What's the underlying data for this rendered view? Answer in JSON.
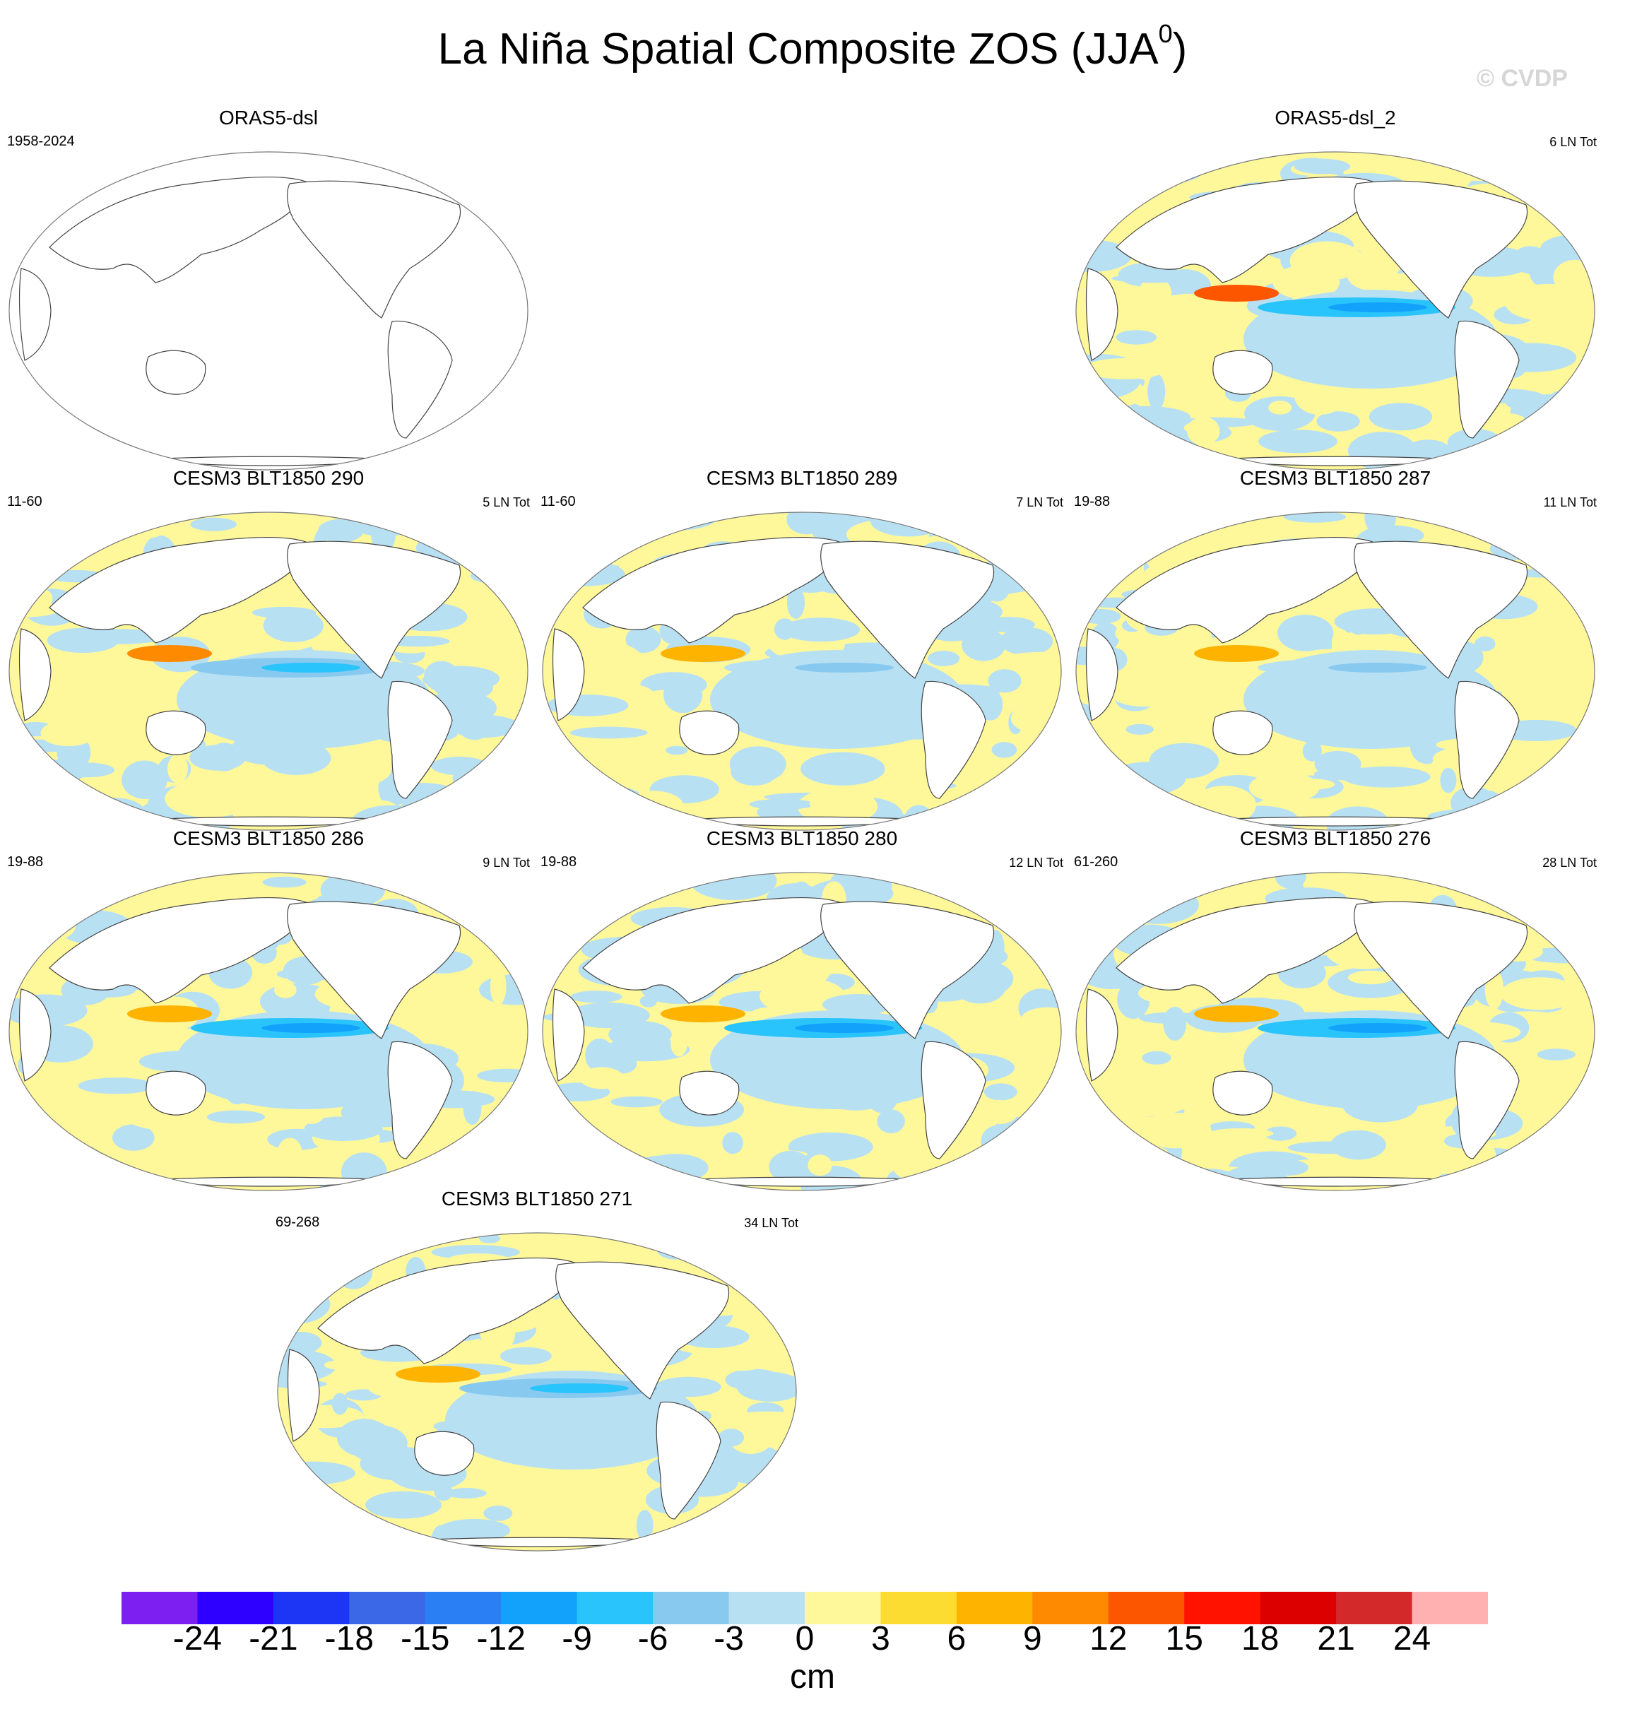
{
  "title": {
    "text": "La Niña Spatial Composite ZOS (JJA",
    "superscript": "0",
    "suffix": ")"
  },
  "watermark": "© CVDP",
  "chart_data": {
    "type": "heatmap",
    "title": "La Niña Spatial Composite ZOS (JJA0)",
    "projection": "Robinson-like global ellipse map, centered on Pacific",
    "colorbar": {
      "unit": "cm",
      "ticks": [
        "-24",
        "-21",
        "-18",
        "-15",
        "-12",
        "-9",
        "-6",
        "-3",
        "0",
        "3",
        "6",
        "9",
        "12",
        "15",
        "18",
        "21",
        "24"
      ],
      "colors": [
        "#7d1ff0",
        "#2e00ff",
        "#1d35f5",
        "#3b68e6",
        "#2a7ff5",
        "#12a2fb",
        "#29c4fb",
        "#88c9f0",
        "#b8e0f3",
        "#fff89a",
        "#fddc32",
        "#fdb300",
        "#fd8a00",
        "#fd5600",
        "#ff1200",
        "#dd0000",
        "#d3292b",
        "#ffb1b1"
      ]
    },
    "panels": [
      {
        "name": "ORAS5-dsl",
        "left": "1958-2024",
        "right": "",
        "empty": true,
        "enso_min": 0,
        "warm_pool": 0
      },
      {
        "name": "ORAS5-dsl_2",
        "left": "",
        "right": "6 LN Tot",
        "empty": false,
        "enso_min": -9,
        "warm_pool": 12
      },
      {
        "name": "CESM3 BLT1850 290",
        "left": "11-60",
        "right": "5 LN Tot",
        "empty": false,
        "enso_min": -6,
        "warm_pool": 9
      },
      {
        "name": "CESM3 BLT1850 289",
        "left": "11-60",
        "right": "7 LN Tot",
        "empty": false,
        "enso_min": -3,
        "warm_pool": 6
      },
      {
        "name": "CESM3 BLT1850 287",
        "left": "19-88",
        "right": "11 LN Tot",
        "empty": false,
        "enso_min": -3,
        "warm_pool": 6
      },
      {
        "name": "CESM3 BLT1850 286",
        "left": "19-88",
        "right": "9 LN Tot",
        "empty": false,
        "enso_min": -9,
        "warm_pool": 6
      },
      {
        "name": "CESM3 BLT1850 280",
        "left": "19-88",
        "right": "12 LN Tot",
        "empty": false,
        "enso_min": -9,
        "warm_pool": 6
      },
      {
        "name": "CESM3 BLT1850 276",
        "left": "61-260",
        "right": "28 LN Tot",
        "empty": false,
        "enso_min": -9,
        "warm_pool": 6
      },
      {
        "name": "CESM3 BLT1850 271",
        "left": "69-268",
        "right": "34 LN Tot",
        "empty": false,
        "enso_min": -6,
        "warm_pool": 6
      }
    ]
  }
}
